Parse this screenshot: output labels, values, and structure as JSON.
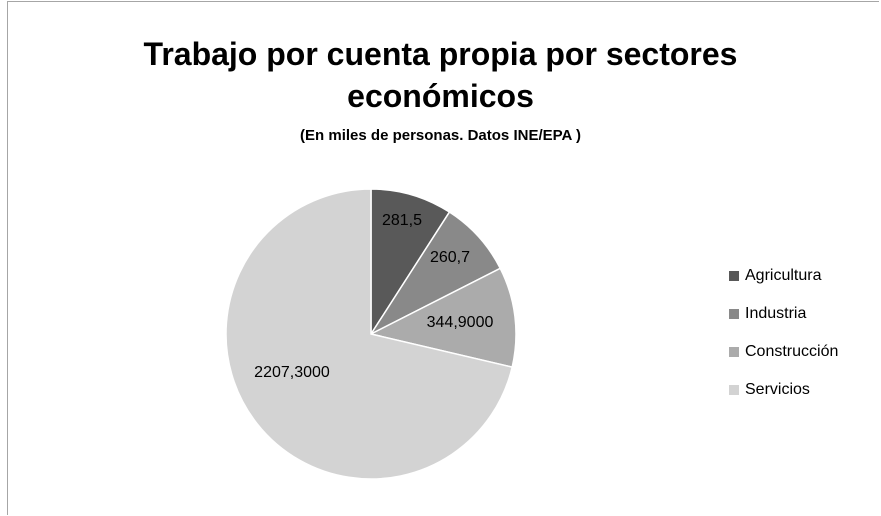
{
  "chart_data": {
    "type": "pie",
    "title_line1": "Trabajo por cuenta propia por sectores",
    "title_line2": "económicos",
    "subtitle": "(En miles de personas. Datos INE/EPA )",
    "legend_position": "right",
    "slices": [
      {
        "name": "Agricultura",
        "value": 281.5,
        "label": "281,5",
        "color": "#595959"
      },
      {
        "name": "Industria",
        "value": 260.7,
        "label": "260,7",
        "color": "#898989"
      },
      {
        "name": "Construcción",
        "value": 344.9,
        "label": "344,9000",
        "color": "#ababab"
      },
      {
        "name": "Servicios",
        "value": 2207.3,
        "label": "2207,3000",
        "color": "#d3d3d3"
      }
    ]
  }
}
